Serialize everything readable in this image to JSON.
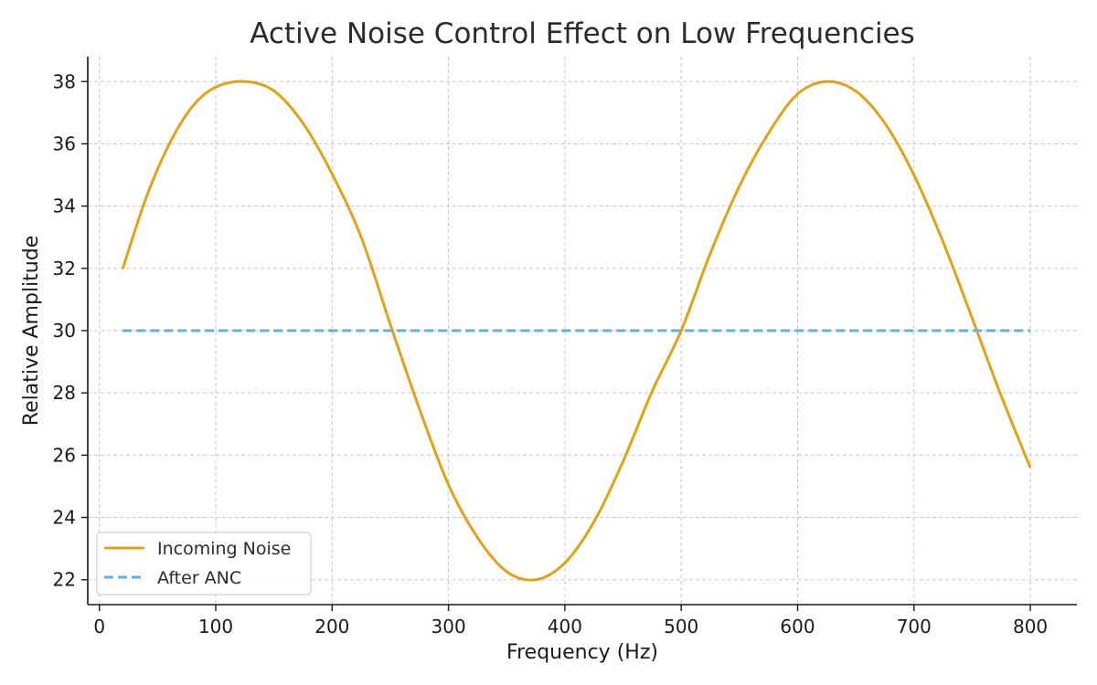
{
  "chart_data": {
    "type": "line",
    "title": "Active Noise Control Effect on Low Frequencies",
    "xlabel": "Frequency (Hz)",
    "ylabel": "Relative Amplitude",
    "xlim": [
      -10,
      840
    ],
    "ylim": [
      21.2,
      38.8
    ],
    "xticks": [
      0,
      100,
      200,
      300,
      400,
      500,
      600,
      700,
      800
    ],
    "yticks": [
      22,
      24,
      26,
      28,
      30,
      32,
      34,
      36,
      38
    ],
    "grid": true,
    "legend_position": "lower-left",
    "series": [
      {
        "name": "Incoming Noise",
        "color": "#e3a114",
        "style": "solid",
        "x": [
          20,
          40,
          60,
          80,
          100,
          125,
          150,
          175,
          200,
          225,
          250,
          275,
          300,
          325,
          350,
          375,
          400,
          425,
          450,
          475,
          500,
          525,
          550,
          575,
          600,
          625,
          650,
          675,
          700,
          725,
          750,
          775,
          800
        ],
        "y": [
          31.98,
          34.25,
          35.99,
          37.2,
          37.82,
          38.0,
          37.7,
          36.66,
          35.03,
          33.0,
          30.2,
          27.49,
          25.05,
          23.35,
          22.26,
          22.0,
          22.54,
          23.86,
          25.8,
          28.05,
          30.0,
          32.48,
          34.64,
          36.34,
          37.6,
          38.0,
          37.69,
          36.66,
          35.0,
          32.85,
          30.4,
          27.9,
          25.6
        ]
      },
      {
        "name": "After ANC",
        "color": "#56b4e9",
        "style": "dashed",
        "x": [
          20,
          800
        ],
        "y": [
          30,
          30
        ]
      }
    ]
  }
}
